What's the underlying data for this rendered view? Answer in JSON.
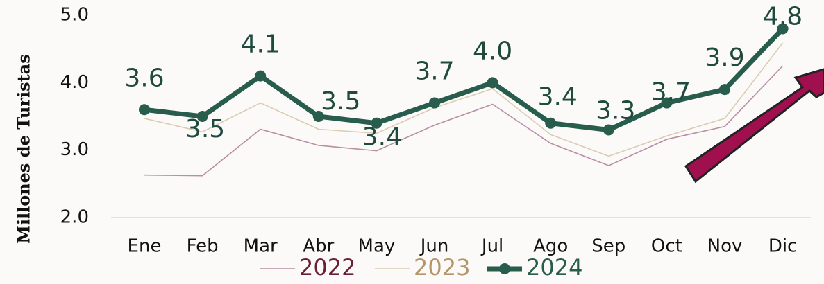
{
  "chart_data": {
    "type": "line",
    "y_label": "Millones de Turistas",
    "categories": [
      "Ene",
      "Feb",
      "Mar",
      "Abr",
      "May",
      "Jun",
      "Jul",
      "Ago",
      "Sep",
      "Oct",
      "Nov",
      "Dic"
    ],
    "series": [
      {
        "name": "2022",
        "color": "#b88ea3",
        "values": [
          2.63,
          2.62,
          3.31,
          3.07,
          2.99,
          3.37,
          3.68,
          3.1,
          2.77,
          3.16,
          3.35,
          4.25
        ]
      },
      {
        "name": "2023",
        "color": "#dccbb2",
        "values": [
          3.47,
          3.27,
          3.7,
          3.31,
          3.25,
          3.63,
          3.91,
          3.23,
          2.91,
          3.21,
          3.47,
          4.59
        ]
      },
      {
        "name": "2024",
        "color": "#285c4d",
        "values": [
          3.6,
          3.5,
          4.1,
          3.5,
          3.4,
          3.7,
          4.0,
          3.4,
          3.3,
          3.7,
          3.9,
          4.8
        ],
        "value_labels": [
          "3.6",
          "3.5",
          "4.1",
          "3.5",
          "3.4",
          "3.7",
          "4.0",
          "3.4",
          "3.3",
          "3.7",
          "3.9",
          "4.8"
        ]
      }
    ],
    "ylim": [
      2.0,
      5.0
    ],
    "yticks": [
      {
        "value": 2.0,
        "label": "2.0"
      },
      {
        "value": 3.0,
        "label": "3.0"
      },
      {
        "value": 4.0,
        "label": "4.0"
      },
      {
        "value": 5.0,
        "label": "5.0"
      }
    ],
    "grid": false
  }
}
